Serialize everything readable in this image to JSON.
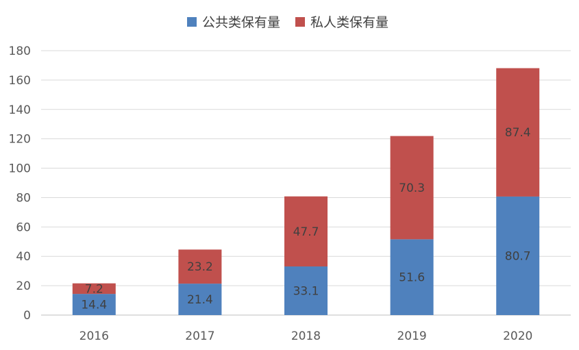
{
  "chart_data": {
    "type": "bar",
    "stacked": true,
    "categories": [
      "2016",
      "2017",
      "2018",
      "2019",
      "2020"
    ],
    "series": [
      {
        "name": "公共类保有量",
        "color": "#4f81bd",
        "values": [
          14.4,
          21.4,
          33.1,
          51.6,
          80.7
        ]
      },
      {
        "name": "私人类保有量",
        "color": "#c0504d",
        "values": [
          7.2,
          23.2,
          47.7,
          70.3,
          87.4
        ]
      }
    ],
    "ylim": [
      0,
      180
    ],
    "yticks": [
      0,
      20,
      40,
      60,
      80,
      100,
      120,
      140,
      160,
      180
    ],
    "grid": true,
    "legend_position": "top-center"
  }
}
